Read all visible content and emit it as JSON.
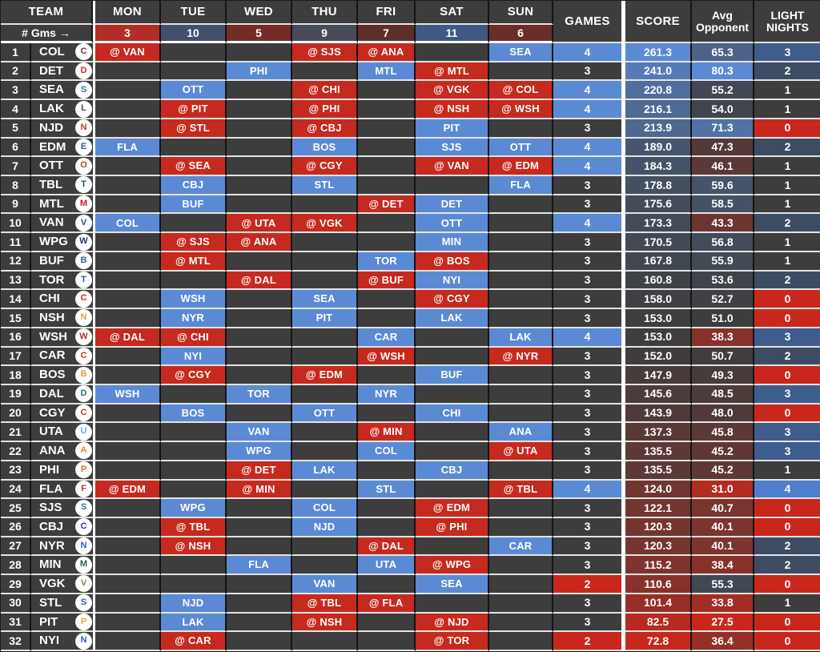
{
  "chart_data": {
    "type": "table",
    "title": "NHL weekly schedule grid with score heatmap",
    "header": {
      "team": "TEAM",
      "days": [
        "MON",
        "TUE",
        "WED",
        "THU",
        "FRI",
        "SAT",
        "SUN"
      ],
      "games": "GAMES",
      "score": "SCORE",
      "avg_line1": "Avg",
      "avg_line2": "Opponent",
      "light_line1": "LIGHT",
      "light_line2": "NIGHTS",
      "gms_label": "# Gms →"
    },
    "day_counts": [
      3,
      10,
      5,
      9,
      7,
      11,
      6
    ],
    "colors": {
      "cell_bg": "#3d3d3d",
      "home_blue": "#5b8ad5",
      "away_red": "#c62a1e",
      "scale_high": "#5b8ad5",
      "scale_neutral": "#3d3d3d",
      "scale_low": "#cb271b",
      "row_line": "#e3e3e3",
      "col_line": "#141414"
    },
    "scales": {
      "score": {
        "min": 70.0,
        "mid": 154.0,
        "max": 262.0
      },
      "avg": {
        "min": 27.0,
        "mid": 51.0,
        "max": 80.5
      }
    },
    "maps": {
      "games": {
        "2": "#c9271b",
        "3": "#3d3d3d",
        "4": "#5b8ad5"
      },
      "light": {
        "0": "#c9271b",
        "1": "#3d3d3d",
        "2": "#3d4c63",
        "3": "#3e5c8c",
        "4": "#4e7fcc"
      },
      "day_count": {
        "3": "#b22d25",
        "5": "#742c27",
        "6": "#6b2d28",
        "7": "#5d2f2b",
        "9": "#474a58",
        "10": "#42506b",
        "11": "#3e5a84"
      }
    },
    "rows": [
      {
        "rank": 1,
        "team": "COL",
        "color": "#7b2d42",
        "days": [
          "@VAN",
          "",
          "",
          "@SJS",
          "@ANA",
          "",
          "SEA"
        ],
        "games": 4,
        "score": "261.3",
        "avg": "65.3",
        "light": 3
      },
      {
        "rank": 2,
        "team": "DET",
        "color": "#d12c3a",
        "days": [
          "",
          "",
          "PHI",
          "",
          "MTL",
          "@MTL",
          ""
        ],
        "games": 3,
        "score": "241.0",
        "avg": "80.3",
        "light": 2
      },
      {
        "rank": 3,
        "team": "SEA",
        "color": "#3b6f8a",
        "days": [
          "",
          "OTT",
          "",
          "@CHI",
          "",
          "@VGK",
          "@COL"
        ],
        "games": 4,
        "score": "220.8",
        "avg": "55.2",
        "light": 1
      },
      {
        "rank": 4,
        "team": "LAK",
        "color": "#4a4a4a",
        "days": [
          "",
          "@PIT",
          "",
          "@PHI",
          "",
          "@NSH",
          "@WSH"
        ],
        "games": 4,
        "score": "216.1",
        "avg": "54.0",
        "light": 1
      },
      {
        "rank": 5,
        "team": "NJD",
        "color": "#cf2b34",
        "days": [
          "",
          "@STL",
          "",
          "@CBJ",
          "",
          "PIT",
          ""
        ],
        "games": 3,
        "score": "213.9",
        "avg": "71.3",
        "light": 0
      },
      {
        "rank": 6,
        "team": "EDM",
        "color": "#2b56a4",
        "days": [
          "FLA",
          "",
          "",
          "BOS",
          "",
          "SJS",
          "OTT"
        ],
        "games": 4,
        "score": "189.0",
        "avg": "47.3",
        "light": 2
      },
      {
        "rank": 7,
        "team": "OTT",
        "color": "#c13a2a",
        "days": [
          "",
          "@SEA",
          "",
          "@CGY",
          "",
          "@VAN",
          "@EDM"
        ],
        "games": 4,
        "score": "184.3",
        "avg": "46.1",
        "light": 1
      },
      {
        "rank": 8,
        "team": "TBL",
        "color": "#1f4fa8",
        "days": [
          "",
          "CBJ",
          "",
          "STL",
          "",
          "",
          "FLA"
        ],
        "games": 3,
        "score": "178.8",
        "avg": "59.6",
        "light": 1
      },
      {
        "rank": 9,
        "team": "MTL",
        "color": "#b32234",
        "days": [
          "",
          "BUF",
          "",
          "",
          "@DET",
          "DET",
          ""
        ],
        "games": 3,
        "score": "175.6",
        "avg": "58.5",
        "light": 1
      },
      {
        "rank": 10,
        "team": "VAN",
        "color": "#1f4788",
        "days": [
          "COL",
          "",
          "@UTA",
          "@VGK",
          "",
          "OTT",
          ""
        ],
        "games": 4,
        "score": "173.3",
        "avg": "43.3",
        "light": 2
      },
      {
        "rank": 11,
        "team": "WPG",
        "color": "#18335e",
        "days": [
          "",
          "@SJS",
          "@ANA",
          "",
          "",
          "MIN",
          ""
        ],
        "games": 3,
        "score": "170.5",
        "avg": "56.8",
        "light": 1
      },
      {
        "rank": 12,
        "team": "BUF",
        "color": "#2b5cad",
        "days": [
          "",
          "@MTL",
          "",
          "",
          "TOR",
          "@BOS",
          ""
        ],
        "games": 3,
        "score": "167.8",
        "avg": "55.9",
        "light": 1
      },
      {
        "rank": 13,
        "team": "TOR",
        "color": "#2458a7",
        "days": [
          "",
          "",
          "@DAL",
          "",
          "@BUF",
          "NYI",
          ""
        ],
        "games": 3,
        "score": "160.8",
        "avg": "53.6",
        "light": 2
      },
      {
        "rank": 14,
        "team": "CHI",
        "color": "#b5342c",
        "days": [
          "",
          "WSH",
          "",
          "SEA",
          "",
          "@CGY",
          ""
        ],
        "games": 3,
        "score": "158.0",
        "avg": "52.7",
        "light": 0
      },
      {
        "rank": 15,
        "team": "NSH",
        "color": "#d9a93f",
        "days": [
          "",
          "NYR",
          "",
          "PIT",
          "",
          "LAK",
          ""
        ],
        "games": 3,
        "score": "153.0",
        "avg": "51.0",
        "light": 0
      },
      {
        "rank": 16,
        "team": "WSH",
        "color": "#b92837",
        "days": [
          "@DAL",
          "@CHI",
          "",
          "",
          "CAR",
          "",
          "LAK"
        ],
        "games": 4,
        "score": "153.0",
        "avg": "38.3",
        "light": 3
      },
      {
        "rank": 17,
        "team": "CAR",
        "color": "#c62f2f",
        "days": [
          "",
          "NYI",
          "",
          "",
          "@WSH",
          "",
          "@NYR"
        ],
        "games": 3,
        "score": "152.0",
        "avg": "50.7",
        "light": 2
      },
      {
        "rank": 18,
        "team": "BOS",
        "color": "#d9a33c",
        "days": [
          "",
          "@CGY",
          "",
          "@EDM",
          "",
          "BUF",
          ""
        ],
        "games": 3,
        "score": "147.9",
        "avg": "49.3",
        "light": 0
      },
      {
        "rank": 19,
        "team": "DAL",
        "color": "#2f7a4f",
        "days": [
          "WSH",
          "",
          "TOR",
          "",
          "NYR",
          "",
          ""
        ],
        "games": 3,
        "score": "145.6",
        "avg": "48.5",
        "light": 3
      },
      {
        "rank": 20,
        "team": "CGY",
        "color": "#d4362c",
        "days": [
          "",
          "BOS",
          "",
          "OTT",
          "",
          "CHI",
          ""
        ],
        "games": 3,
        "score": "143.9",
        "avg": "48.0",
        "light": 0
      },
      {
        "rank": 21,
        "team": "UTA",
        "color": "#6ca9dd",
        "days": [
          "",
          "",
          "VAN",
          "",
          "@MIN",
          "",
          "ANA"
        ],
        "games": 3,
        "score": "137.3",
        "avg": "45.8",
        "light": 3
      },
      {
        "rank": 22,
        "team": "ANA",
        "color": "#e8842c",
        "days": [
          "",
          "",
          "WPG",
          "",
          "COL",
          "",
          "@UTA"
        ],
        "games": 3,
        "score": "135.5",
        "avg": "45.2",
        "light": 3
      },
      {
        "rank": 23,
        "team": "PHI",
        "color": "#ee6424",
        "days": [
          "",
          "",
          "@DET",
          "LAK",
          "",
          "CBJ",
          ""
        ],
        "games": 3,
        "score": "135.5",
        "avg": "45.2",
        "light": 1
      },
      {
        "rank": 24,
        "team": "FLA",
        "color": "#b5342c",
        "days": [
          "@EDM",
          "",
          "@MIN",
          "",
          "STL",
          "",
          "@TBL"
        ],
        "games": 4,
        "score": "124.0",
        "avg": "31.0",
        "light": 4
      },
      {
        "rank": 25,
        "team": "SJS",
        "color": "#2a7f8e",
        "days": [
          "",
          "WPG",
          "",
          "COL",
          "",
          "@EDM",
          ""
        ],
        "games": 3,
        "score": "122.1",
        "avg": "40.7",
        "light": 0
      },
      {
        "rank": 26,
        "team": "CBJ",
        "color": "#27447c",
        "days": [
          "",
          "@TBL",
          "",
          "NJD",
          "",
          "@PHI",
          ""
        ],
        "games": 3,
        "score": "120.3",
        "avg": "40.1",
        "light": 0
      },
      {
        "rank": 27,
        "team": "NYR",
        "color": "#2a5fc4",
        "days": [
          "",
          "@NSH",
          "",
          "",
          "@DAL",
          "",
          "CAR"
        ],
        "games": 3,
        "score": "120.3",
        "avg": "40.1",
        "light": 2
      },
      {
        "rank": 28,
        "team": "MIN",
        "color": "#2f5d46",
        "days": [
          "",
          "",
          "FLA",
          "",
          "UTA",
          "@WPG",
          ""
        ],
        "games": 3,
        "score": "115.2",
        "avg": "38.4",
        "light": 2
      },
      {
        "rank": 29,
        "team": "VGK",
        "color": "#8b7a45",
        "days": [
          "",
          "",
          "",
          "VAN",
          "",
          "SEA",
          ""
        ],
        "games": 2,
        "score": "110.6",
        "avg": "55.3",
        "light": 0
      },
      {
        "rank": 30,
        "team": "STL",
        "color": "#2a56b0",
        "days": [
          "",
          "NJD",
          "",
          "@TBL",
          "@FLA",
          "",
          ""
        ],
        "games": 3,
        "score": "101.4",
        "avg": "33.8",
        "light": 1
      },
      {
        "rank": 31,
        "team": "PIT",
        "color": "#d8b02f",
        "days": [
          "",
          "LAK",
          "",
          "@NSH",
          "",
          "@NJD",
          ""
        ],
        "games": 3,
        "score": "82.5",
        "avg": "27.5",
        "light": 0
      },
      {
        "rank": 32,
        "team": "NYI",
        "color": "#2a58b5",
        "days": [
          "",
          "@CAR",
          "",
          "",
          "",
          "@TOR",
          ""
        ],
        "games": 2,
        "score": "72.8",
        "avg": "36.4",
        "light": 0
      }
    ]
  }
}
